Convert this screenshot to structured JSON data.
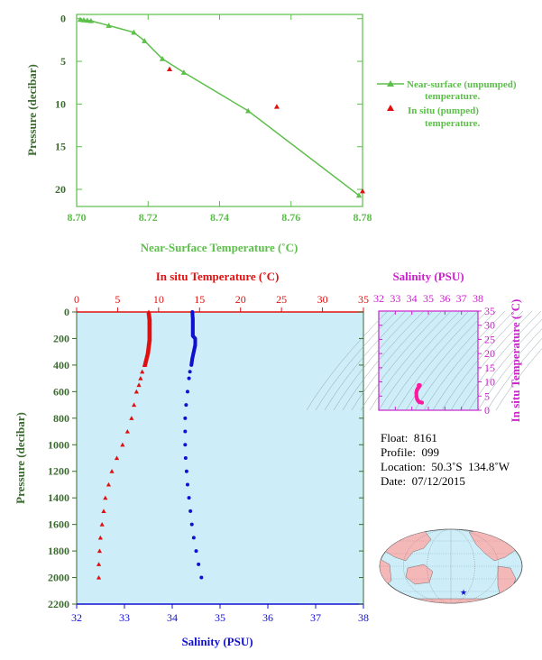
{
  "colors": {
    "green": "#5cbf4a",
    "green_dark": "#3c8c2c",
    "red": "#e01010",
    "blue": "#1010d0",
    "magenta": "#cc22cc",
    "pink": "#ff1aa0",
    "panel_bg": "#cdeef8",
    "axis_dark": "#444444"
  },
  "chart_data": [
    {
      "type": "line",
      "xlabel": "Near-Surface Temperature (˚C)",
      "ylabel": "Pressure (decibar)",
      "xlim": [
        8.7,
        8.78
      ],
      "ylim": [
        22,
        -0.5
      ],
      "x_ticks": [
        "8.70",
        "8.72",
        "8.74",
        "8.76",
        "8.78"
      ],
      "y_ticks": [
        "0",
        "5",
        "10",
        "15",
        "20"
      ],
      "legend": [
        "Near-surface (unpumped) temperature.",
        "In situ (pumped) temperature."
      ],
      "legend_position": "right",
      "series": [
        {
          "name": "Near-surface (unpumped) temperature.",
          "points": [
            [
              8.701,
              0.1
            ],
            [
              8.702,
              0.15
            ],
            [
              8.703,
              0.2
            ],
            [
              8.704,
              0.25
            ],
            [
              8.709,
              0.8
            ],
            [
              8.716,
              1.6
            ],
            [
              8.719,
              2.6
            ],
            [
              8.724,
              4.7
            ],
            [
              8.73,
              6.3
            ],
            [
              8.748,
              10.8
            ],
            [
              8.779,
              20.7
            ]
          ]
        },
        {
          "name": "In situ (pumped) temperature.",
          "points": [
            [
              8.726,
              5.9
            ],
            [
              8.756,
              10.3
            ],
            [
              8.78,
              20.2
            ]
          ]
        }
      ]
    },
    {
      "type": "line",
      "ylabel": "Pressure (decibar)",
      "top_xlabel": "In situ Temperature (˚C)",
      "bottom_xlabel": "Salinity (PSU)",
      "temp_lim": [
        0,
        35
      ],
      "sal_lim": [
        32,
        38
      ],
      "ylim": [
        2200,
        0
      ],
      "temp_ticks": [
        "0",
        "5",
        "10",
        "15",
        "20",
        "25",
        "30",
        "35"
      ],
      "sal_ticks": [
        "32",
        "33",
        "34",
        "35",
        "36",
        "37",
        "38"
      ],
      "y_ticks": [
        "0",
        "200",
        "400",
        "600",
        "800",
        "1000",
        "1200",
        "1400",
        "1600",
        "1800",
        "2000",
        "2200"
      ],
      "temperature_profile": [
        [
          8.8,
          0
        ],
        [
          8.9,
          50
        ],
        [
          8.9,
          100
        ],
        [
          8.9,
          150
        ],
        [
          8.9,
          200
        ],
        [
          8.8,
          250
        ],
        [
          8.7,
          300
        ],
        [
          8.5,
          350
        ],
        [
          8.3,
          400
        ],
        [
          8.0,
          450
        ],
        [
          7.8,
          500
        ],
        [
          7.6,
          550
        ],
        [
          7.3,
          600
        ],
        [
          7.0,
          700
        ],
        [
          6.7,
          800
        ],
        [
          6.2,
          900
        ],
        [
          5.6,
          1000
        ],
        [
          4.9,
          1100
        ],
        [
          4.3,
          1200
        ],
        [
          3.9,
          1300
        ],
        [
          3.5,
          1400
        ],
        [
          3.3,
          1500
        ],
        [
          3.1,
          1600
        ],
        [
          2.9,
          1700
        ],
        [
          2.8,
          1800
        ],
        [
          2.7,
          1900
        ],
        [
          2.7,
          2000
        ]
      ],
      "salinity_profile": [
        [
          34.42,
          0
        ],
        [
          34.43,
          50
        ],
        [
          34.43,
          100
        ],
        [
          34.43,
          150
        ],
        [
          34.43,
          180
        ],
        [
          34.48,
          200
        ],
        [
          34.48,
          250
        ],
        [
          34.45,
          300
        ],
        [
          34.42,
          350
        ],
        [
          34.4,
          400
        ],
        [
          34.37,
          450
        ],
        [
          34.35,
          500
        ],
        [
          34.32,
          600
        ],
        [
          34.29,
          700
        ],
        [
          34.27,
          800
        ],
        [
          34.27,
          900
        ],
        [
          34.27,
          1000
        ],
        [
          34.28,
          1100
        ],
        [
          34.3,
          1200
        ],
        [
          34.32,
          1300
        ],
        [
          34.35,
          1400
        ],
        [
          34.38,
          1500
        ],
        [
          34.41,
          1600
        ],
        [
          34.45,
          1700
        ],
        [
          34.5,
          1800
        ],
        [
          34.55,
          1900
        ],
        [
          34.61,
          2000
        ]
      ]
    },
    {
      "type": "scatter",
      "xlabel": "Salinity (PSU)",
      "ylabel": "In situ Temperature (˚C)",
      "xlim": [
        32,
        38
      ],
      "ylim": [
        0,
        35
      ],
      "x_ticks": [
        "32",
        "33",
        "34",
        "35",
        "36",
        "37",
        "38"
      ],
      "y_ticks": [
        "0",
        "5",
        "10",
        "15",
        "20",
        "25",
        "30",
        "35"
      ],
      "points": [
        [
          34.42,
          8.8
        ],
        [
          34.43,
          8.9
        ],
        [
          34.48,
          8.8
        ],
        [
          34.45,
          8.5
        ],
        [
          34.4,
          8.0
        ],
        [
          34.35,
          7.6
        ],
        [
          34.3,
          7.0
        ],
        [
          34.27,
          6.2
        ],
        [
          34.28,
          4.9
        ],
        [
          34.32,
          3.9
        ],
        [
          34.38,
          3.3
        ],
        [
          34.45,
          2.9
        ],
        [
          34.61,
          2.7
        ]
      ]
    }
  ],
  "info": {
    "float_label": "Float:",
    "float_value": "8161",
    "profile_label": "Profile:",
    "profile_value": "099",
    "location_label": "Location:",
    "location_value": "50.3˚S  134.8˚W",
    "date_label": "Date:",
    "date_value": "07/12/2015"
  },
  "map": {
    "marker": "float-location-star",
    "marker_lon": -134.8,
    "marker_lat": -50.3
  }
}
